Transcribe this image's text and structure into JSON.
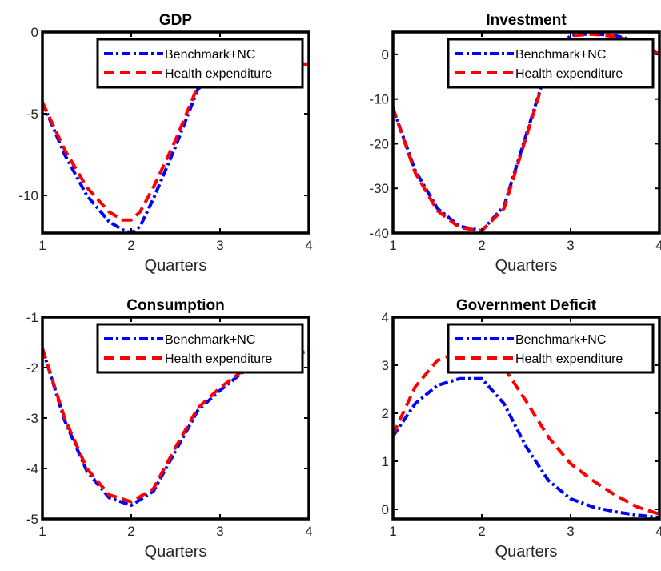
{
  "chart_data": [
    {
      "type": "line",
      "title": "GDP",
      "xlabel": "Quarters",
      "ylabel": "",
      "xlim": [
        1,
        4
      ],
      "ylim": [
        -12.3,
        0
      ],
      "xticks": [
        1,
        2,
        3,
        4
      ],
      "yticks": [
        0,
        -5,
        -10
      ],
      "grid": false,
      "legend_position": "top-right",
      "series": [
        {
          "name": "Benchmark+NC",
          "color": "#0000ff",
          "style": "dash-dot",
          "x": [
            1,
            1.25,
            1.5,
            1.75,
            1.9,
            2.0,
            2.1,
            2.25,
            2.5,
            2.75,
            3.0,
            3.25,
            3.5,
            3.75,
            4.0
          ],
          "y": [
            -4.3,
            -7.5,
            -10.0,
            -11.6,
            -12.1,
            -12.3,
            -11.9,
            -10.2,
            -7.0,
            -3.5,
            -2.3,
            -2.1,
            -2.05,
            -2.0,
            -2.0
          ]
        },
        {
          "name": "Health expenditure",
          "color": "#ff0000",
          "style": "dashed",
          "x": [
            1,
            1.25,
            1.5,
            1.75,
            1.9,
            2.0,
            2.1,
            2.25,
            2.5,
            2.75,
            3.0,
            3.25,
            3.5,
            3.75,
            4.0
          ],
          "y": [
            -4.3,
            -7.2,
            -9.5,
            -11.0,
            -11.5,
            -11.5,
            -11.0,
            -9.5,
            -6.6,
            -3.3,
            -2.2,
            -2.05,
            -2.0,
            -2.0,
            -2.0
          ]
        }
      ]
    },
    {
      "type": "line",
      "title": "Investment",
      "xlabel": "Quarters",
      "ylabel": "",
      "xlim": [
        1,
        4
      ],
      "ylim": [
        -40,
        5
      ],
      "xticks": [
        1,
        2,
        3,
        4
      ],
      "yticks": [
        0,
        -10,
        -20,
        -30,
        -40
      ],
      "grid": false,
      "legend_position": "top-right",
      "series": [
        {
          "name": "Benchmark+NC",
          "color": "#0000ff",
          "style": "dash-dot",
          "x": [
            1,
            1.25,
            1.5,
            1.75,
            2.0,
            2.25,
            2.5,
            2.75,
            3.0,
            3.25,
            3.5,
            3.75,
            4.0
          ],
          "y": [
            -12.0,
            -26.0,
            -34.5,
            -38.5,
            -39.5,
            -34.0,
            -18.0,
            -2.0,
            4.3,
            4.6,
            4.2,
            3.0,
            0.0
          ]
        },
        {
          "name": "Health expenditure",
          "color": "#ff0000",
          "style": "dashed",
          "x": [
            1,
            1.25,
            1.5,
            1.75,
            2.0,
            2.25,
            2.5,
            2.75,
            3.0,
            3.25,
            3.5,
            3.75,
            4.0
          ],
          "y": [
            -12.0,
            -26.5,
            -35.0,
            -38.8,
            -39.5,
            -34.5,
            -18.5,
            -2.2,
            4.2,
            4.5,
            4.0,
            2.8,
            0.0
          ]
        }
      ]
    },
    {
      "type": "line",
      "title": "Consumption",
      "xlabel": "Quarters",
      "ylabel": "",
      "xlim": [
        1,
        4
      ],
      "ylim": [
        -5,
        -1
      ],
      "xticks": [
        1,
        2,
        3,
        4
      ],
      "yticks": [
        -1,
        -2,
        -3,
        -4,
        -5
      ],
      "grid": false,
      "legend_position": "top-right",
      "series": [
        {
          "name": "Benchmark+NC",
          "color": "#0000ff",
          "style": "dash-dot",
          "x": [
            1,
            1.25,
            1.5,
            1.75,
            2.0,
            2.25,
            2.5,
            2.75,
            3.0,
            3.25,
            3.5,
            3.75,
            4.0
          ],
          "y": [
            -1.62,
            -3.05,
            -4.05,
            -4.58,
            -4.73,
            -4.45,
            -3.65,
            -2.85,
            -2.45,
            -2.1,
            -1.9,
            -1.75,
            -1.68
          ]
        },
        {
          "name": "Health expenditure",
          "color": "#ff0000",
          "style": "dashed",
          "x": [
            1,
            1.25,
            1.5,
            1.75,
            2.0,
            2.25,
            2.5,
            2.75,
            3.0,
            3.25,
            3.5,
            3.75,
            4.0
          ],
          "y": [
            -1.62,
            -3.0,
            -4.0,
            -4.52,
            -4.66,
            -4.4,
            -3.58,
            -2.8,
            -2.4,
            -2.07,
            -1.88,
            -1.74,
            -1.68
          ]
        }
      ]
    },
    {
      "type": "line",
      "title": "Government Deficit",
      "xlabel": "Quarters",
      "ylabel": "",
      "xlim": [
        1,
        4
      ],
      "ylim": [
        -0.2,
        4
      ],
      "xticks": [
        1,
        2,
        3,
        4
      ],
      "yticks": [
        0,
        1,
        2,
        3,
        4
      ],
      "grid": false,
      "legend_position": "top-right",
      "series": [
        {
          "name": "Benchmark+NC",
          "color": "#0000ff",
          "style": "dash-dot",
          "x": [
            1,
            1.25,
            1.5,
            1.75,
            2.0,
            2.25,
            2.5,
            2.75,
            3.0,
            3.25,
            3.5,
            3.75,
            4.0
          ],
          "y": [
            1.52,
            2.2,
            2.58,
            2.72,
            2.72,
            2.2,
            1.3,
            0.6,
            0.22,
            0.05,
            -0.05,
            -0.12,
            -0.17
          ]
        },
        {
          "name": "Health expenditure",
          "color": "#ff0000",
          "style": "dashed",
          "x": [
            1,
            1.25,
            1.5,
            1.75,
            2.0,
            2.25,
            2.5,
            2.75,
            3.0,
            3.25,
            3.5,
            3.75,
            4.0
          ],
          "y": [
            1.55,
            2.55,
            3.1,
            3.28,
            3.25,
            2.95,
            2.25,
            1.5,
            0.95,
            0.6,
            0.3,
            0.05,
            -0.1
          ]
        }
      ]
    }
  ]
}
